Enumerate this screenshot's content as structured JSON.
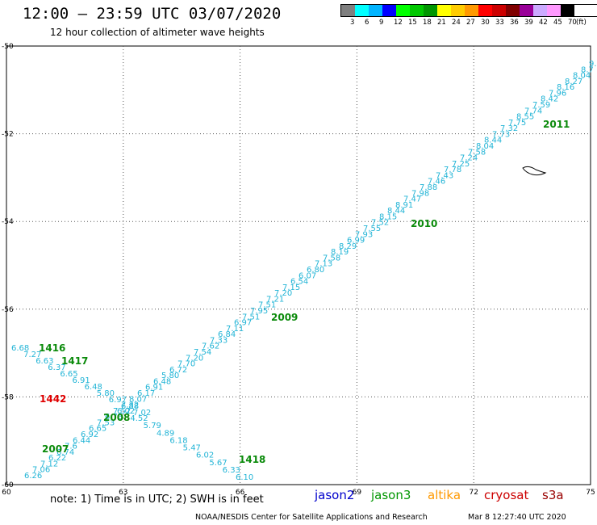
{
  "header": {
    "title": "12:00 – 23:59 UTC 03/07/2020",
    "subtitle": "12 hour collection of altimeter wave heights"
  },
  "legend": {
    "colors": [
      "#7f7f7f",
      "#00ffff",
      "#00b4ff",
      "#0000ff",
      "#00ff00",
      "#00c800",
      "#009600",
      "#ffff00",
      "#ffcc00",
      "#ff9900",
      "#ff0000",
      "#cc0000",
      "#800000",
      "#990099",
      "#ccaaff",
      "#ff99ff",
      "#000000"
    ],
    "labels": [
      "3",
      "6",
      "9",
      "12",
      "15",
      "18",
      "21",
      "24",
      "27",
      "30",
      "33",
      "36",
      "39",
      "42",
      "45",
      "70",
      "(ft)"
    ]
  },
  "footer": {
    "note": "note:  1) Time is in UTC;  2) SWH is in feet",
    "credit": "NOAA/NESDIS Center for Satellite Applications and Research",
    "timestamp": "Mar  8 12:27:40 UTC 2020",
    "satellites": [
      {
        "name": "jason2",
        "color": "#0000cc"
      },
      {
        "name": "jason3",
        "color": "#009600"
      },
      {
        "name": "altika",
        "color": "#ff9900"
      },
      {
        "name": "cryosat",
        "color": "#cc0000"
      },
      {
        "name": "s3a",
        "color": "#990000"
      }
    ]
  },
  "map": {
    "x_ticks": [
      "60",
      "63",
      "66",
      "69",
      "72",
      "75"
    ],
    "y_ticks": [
      "-50",
      "-52",
      "-54",
      "-56",
      "-58",
      "-60"
    ],
    "coastline_label": "",
    "tracks": [
      {
        "name": "main-ascending",
        "values": [
          "6.10",
          "6.33",
          "5.67",
          "6.02",
          "5.47",
          "6.18",
          "4.89",
          "5.79",
          "4.52",
          "6.02"
        ],
        "time_labels": []
      },
      {
        "name": "diagonal",
        "values": [
          "6.26",
          "7.06",
          "7.12",
          "6.22",
          "6.74",
          "7.6",
          "6.44",
          "6.92",
          "6.65",
          "7.53",
          "6.73",
          "7.52",
          "7.32",
          "8.07",
          "6.17",
          "6.91",
          "6.48",
          "5.80",
          "6.72",
          "7.70",
          "7.20",
          "7.54",
          "7.62",
          "7.33",
          "6.84",
          "7.11",
          "6.97",
          "7.51",
          "7.95",
          "7.51",
          "7.21",
          "7.20",
          "7.15",
          "6.54",
          "6.07",
          "6.80",
          "7.13",
          "7.58",
          "8.19",
          "8.29",
          "6.99",
          "7.93",
          "7.55",
          "7.52",
          "8.15",
          "8.44",
          "8.91",
          "7.47",
          "7.98",
          "7.88",
          "7.46",
          "7.43",
          "7.78",
          "7.25",
          "7.24",
          "7.58",
          "8.04",
          "8.44",
          "7.73",
          "7.32",
          "7.75",
          "8.55",
          "7.74",
          "7.59",
          "8.42",
          "7.96",
          "8.16",
          "8.27",
          "8.04",
          "8.7",
          "9."
        ],
        "time_labels": [
          "2007",
          "2008",
          "2009",
          "2010",
          "2011"
        ]
      },
      {
        "name": "left-descending",
        "values": [
          "6.68",
          "7.27",
          "6.63",
          "6.37",
          "6.65",
          "6.91",
          "6.48",
          "5.80",
          "6.97",
          "6.88",
          "7.02"
        ],
        "time_labels": [
          "1416",
          "1417",
          "1442",
          "1418"
        ]
      }
    ]
  }
}
